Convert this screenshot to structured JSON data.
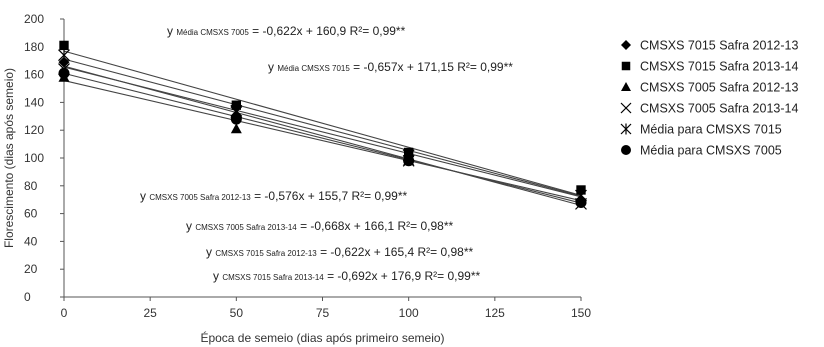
{
  "chart_data": {
    "type": "scatter",
    "xlabel": "Época de semeio (dias após primeiro semeio)",
    "ylabel": "Florescimento (dias após semeio)",
    "xlim": [
      0,
      150
    ],
    "ylim": [
      0,
      200
    ],
    "x_ticks": [
      "0",
      "25",
      "50",
      "75",
      "100",
      "125",
      "150"
    ],
    "y_ticks": [
      "0",
      "20",
      "40",
      "60",
      "80",
      "100",
      "120",
      "140",
      "160",
      "180",
      "200"
    ],
    "grid": false,
    "legend_position": "right",
    "series": [
      {
        "name": "CMSXS 7015 Safra 2012-13",
        "marker": "diamond",
        "x": [
          0,
          50,
          100,
          150
        ],
        "y": [
          169,
          130,
          101,
          70
        ]
      },
      {
        "name": "CMSXS 7015 Safra 2013-14",
        "marker": "square",
        "x": [
          0,
          50,
          100,
          150
        ],
        "y": [
          181,
          138,
          104,
          77
        ]
      },
      {
        "name": "CMSXS 7005 Safra 2012-13",
        "marker": "triangle",
        "x": [
          0,
          50,
          100,
          150
        ],
        "y": [
          158,
          121,
          98,
          70
        ]
      },
      {
        "name": "CMSXS 7005 Safra 2013-14",
        "marker": "x",
        "x": [
          0,
          50,
          100,
          150
        ],
        "y": [
          164,
          133,
          98,
          67
        ]
      },
      {
        "name": "Média para CMSXS 7015",
        "marker": "asterisk",
        "x": [
          0,
          50,
          100,
          150
        ],
        "y": [
          174,
          134,
          102,
          73
        ]
      },
      {
        "name": "Média para CMSXS 7005",
        "marker": "circle",
        "x": [
          0,
          50,
          100,
          150
        ],
        "y": [
          161,
          128,
          98,
          68
        ]
      }
    ],
    "trendlines": [
      {
        "slope": -0.622,
        "intercept": 160.9
      },
      {
        "slope": -0.657,
        "intercept": 171.15
      },
      {
        "slope": -0.576,
        "intercept": 155.7
      },
      {
        "slope": -0.668,
        "intercept": 166.1
      },
      {
        "slope": -0.622,
        "intercept": 165.4
      },
      {
        "slope": -0.692,
        "intercept": 176.9
      }
    ],
    "annotations": [
      {
        "y_label": "y",
        "sub": "Média CMSXS 7005",
        "rest": "= -0,622x + 160,9 R²= 0,99**"
      },
      {
        "y_label": "y",
        "sub": "Média CMSXS 7015",
        "rest": "= -0,657x + 171,15 R²= 0,99**"
      },
      {
        "y_label": "y",
        "sub": "CMSXS 7005 Safra 2012-13",
        "rest": "= -0,576x + 155,7 R²= 0,99**"
      },
      {
        "y_label": "y",
        "sub": "CMSXS 7005 Safra 2013-14",
        "rest": "= -0,668x + 166,1 R²= 0,98**"
      },
      {
        "y_label": "y",
        "sub": "CMSXS 7015 Safra 2012-13",
        "rest": "= -0,622x + 165,4 R²= 0,98**"
      },
      {
        "y_label": "y",
        "sub": "CMSXS 7015 Safra 2013-14",
        "rest": "= -0,692x + 176,9 R²= 0,99**"
      }
    ],
    "colors": {
      "marker": "#000000",
      "line": "#444444",
      "axis": "#555555"
    }
  }
}
